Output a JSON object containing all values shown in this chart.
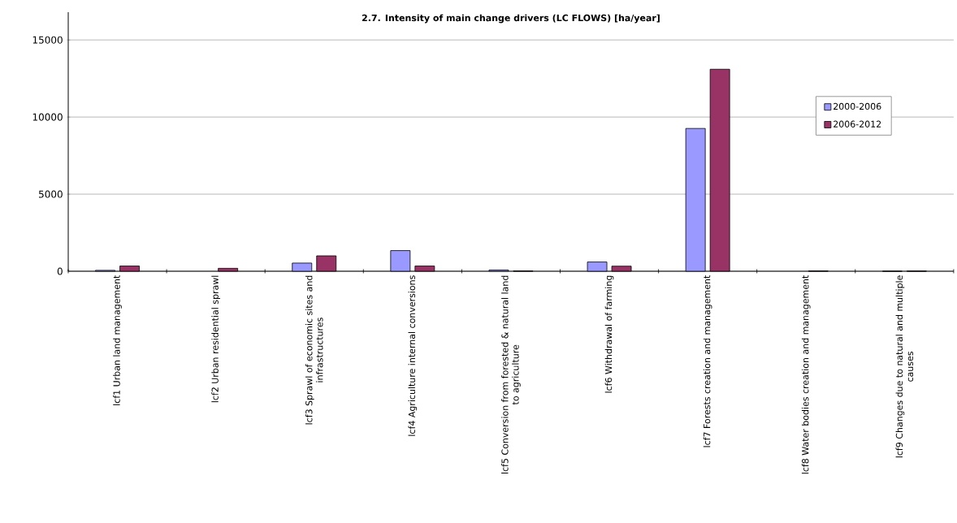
{
  "chart_data": {
    "type": "bar",
    "title": "2.7. Intensity of main change drivers (LC FLOWS) [ha/year]",
    "categories": [
      "lcf1 Urban land management",
      "lcf2 Urban residential sprawl",
      "lcf3 Sprawl of economic sites and infrastructures",
      "lcf4 Agriculture internal conversions",
      "lcf5 Conversion from forested & natural land to agriculture",
      "lcf6 Withdrawal of farming",
      "lcf7 Forests creation and management",
      "lcf8 Water bodies creation and management",
      "lcf9 Changes due to natural and multiple causes"
    ],
    "series": [
      {
        "name": "2000-2006",
        "color": "#9999ff",
        "values": [
          60,
          null,
          530,
          1340,
          80,
          600,
          9260,
          null,
          0
        ]
      },
      {
        "name": "2006-2012",
        "color": "#993366",
        "values": [
          340,
          190,
          1000,
          340,
          20,
          330,
          13100,
          20,
          10
        ]
      }
    ],
    "ylim": [
      0,
      16800
    ],
    "yticks": [
      0,
      5000,
      10000,
      15000
    ],
    "grid": "y",
    "legend": "right"
  }
}
